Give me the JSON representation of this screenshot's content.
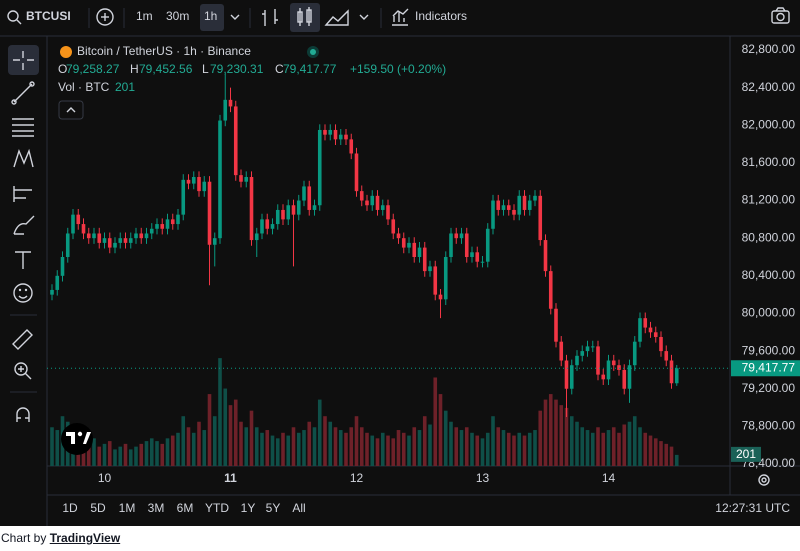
{
  "toolbar": {
    "symbol": "BTCUSI",
    "intervals": [
      "1m",
      "30m",
      "1h"
    ],
    "indicators": "Indicators"
  },
  "chart_data": {
    "type": "candlestick",
    "title": "Bitcoin / TetherUS · 1h · Binance",
    "ohlc_legend": {
      "o_label": "O",
      "o": "79,258.27",
      "h_label": "H",
      "h": "79,452.56",
      "l_label": "L",
      "l": "79,230.31",
      "c_label": "C",
      "c": "79,417.77",
      "change": "+159.50 (+0.20%)"
    },
    "volume_legend_label": "Vol · BTC",
    "categories": [
      null,
      null,
      null,
      null,
      null,
      null,
      null,
      null,
      null,
      null,
      "10",
      null,
      null,
      null,
      null,
      null,
      null,
      null,
      null,
      null,
      null,
      null,
      null,
      null,
      null,
      null,
      null,
      null,
      null,
      null,
      null,
      null,
      null,
      null,
      "11",
      null,
      null,
      null,
      null,
      null,
      null,
      null,
      null,
      null,
      null,
      null,
      null,
      null,
      null,
      null,
      null,
      null,
      null,
      null,
      null,
      null,
      null,
      null,
      "12",
      null,
      null,
      null,
      null,
      null,
      null,
      null,
      null,
      null,
      null,
      null,
      null,
      null,
      null,
      null,
      null,
      null,
      null,
      null,
      null,
      null,
      null,
      null,
      "13",
      null,
      null,
      null,
      null,
      null,
      null,
      null,
      null,
      null,
      null,
      null,
      null,
      null,
      null,
      null,
      null,
      null,
      null,
      null,
      null,
      null,
      null,
      null,
      "14",
      null,
      null,
      null,
      null,
      null,
      null,
      null,
      null,
      null,
      null,
      null,
      null,
      null
    ],
    "opens": [
      80200,
      80250,
      80400,
      80600,
      80850,
      81050,
      80950,
      80850,
      80800,
      80850,
      80750,
      80800,
      80700,
      80750,
      80800,
      80750,
      80800,
      80850,
      80800,
      80850,
      80900,
      80950,
      80900,
      81000,
      80950,
      81050,
      81420,
      81380,
      81450,
      81300,
      81400,
      80730,
      80800,
      82050,
      82270,
      82200,
      81470,
      81400,
      81450,
      80780,
      80850,
      81000,
      80900,
      80950,
      81100,
      81000,
      81150,
      81050,
      81200,
      81350,
      81100,
      81150,
      81950,
      81900,
      81950,
      81850,
      81900,
      81850,
      81700,
      81300,
      81200,
      81150,
      81250,
      81100,
      81150,
      81000,
      80850,
      80800,
      80700,
      80750,
      80600,
      80700,
      80450,
      80500,
      80200,
      80150,
      80600,
      80850,
      80800,
      80850,
      80600,
      80650,
      80550,
      80550,
      80900,
      81200,
      81100,
      81150,
      81100,
      81050,
      81250,
      81100,
      81200,
      81250,
      80780,
      80450,
      80050,
      79700,
      79500,
      79200,
      79450,
      79550,
      79600,
      79650,
      79650,
      79350,
      79300,
      79500,
      79450,
      79400,
      79200,
      79450,
      79700,
      79950,
      79850,
      79800,
      79750,
      79600,
      79500,
      79258.27
    ],
    "highs": [
      80310,
      80460,
      80660,
      80910,
      81110,
      81110,
      81010,
      80910,
      80910,
      80910,
      80860,
      80860,
      80810,
      80860,
      80860,
      80860,
      80910,
      80910,
      80910,
      80960,
      81010,
      81010,
      81060,
      81060,
      81110,
      81480,
      81480,
      81510,
      81510,
      81460,
      81460,
      80860,
      82110,
      82550,
      82400,
      82260,
      81530,
      81510,
      81510,
      80910,
      81060,
      81060,
      81010,
      81160,
      81160,
      81210,
      81210,
      81260,
      81410,
      81410,
      81210,
      82010,
      82010,
      82010,
      82010,
      81960,
      81960,
      81910,
      81760,
      81360,
      81260,
      81310,
      81310,
      81210,
      81210,
      81060,
      80910,
      80860,
      80810,
      80810,
      80760,
      80760,
      80560,
      80560,
      80260,
      80660,
      80910,
      80910,
      80910,
      80910,
      80710,
      80710,
      80610,
      80960,
      81260,
      81260,
      81210,
      81210,
      81160,
      81310,
      81310,
      81260,
      81310,
      81310,
      80840,
      80510,
      80110,
      79760,
      79560,
      79510,
      79610,
      79660,
      79710,
      79710,
      79710,
      79410,
      79560,
      79560,
      79510,
      79460,
      79510,
      79760,
      80010,
      80010,
      79910,
      79860,
      79810,
      79660,
      79560,
      79452.56
    ],
    "lows": [
      80140,
      80190,
      80340,
      80540,
      80790,
      80890,
      80790,
      80740,
      80740,
      80690,
      80690,
      80640,
      80640,
      80690,
      80690,
      80690,
      80740,
      80740,
      80740,
      80790,
      80840,
      80840,
      80840,
      80890,
      80890,
      80990,
      81320,
      81320,
      81240,
      81240,
      80300,
      80500,
      80740,
      81990,
      82140,
      81410,
      81340,
      81340,
      80720,
      80600,
      80790,
      80840,
      80840,
      80890,
      80940,
      80940,
      80500,
      80990,
      81140,
      81040,
      81040,
      81090,
      81840,
      81840,
      81790,
      81790,
      81790,
      81640,
      81240,
      81140,
      81090,
      81090,
      81040,
      81040,
      80940,
      80790,
      80740,
      80640,
      80640,
      80540,
      80540,
      80390,
      80390,
      80140,
      79950,
      80090,
      80540,
      80740,
      80740,
      80540,
      80540,
      80490,
      80490,
      80490,
      80840,
      81040,
      81040,
      81040,
      80990,
      80990,
      81040,
      81040,
      81140,
      80720,
      80390,
      79990,
      79640,
      79440,
      78900,
      79140,
      79390,
      79490,
      79540,
      79590,
      79290,
      79240,
      79240,
      79390,
      79340,
      79140,
      79050,
      79390,
      79640,
      79790,
      79740,
      79690,
      79540,
      79440,
      79200,
      79230.31
    ],
    "closes": [
      80250,
      80400,
      80600,
      80850,
      81050,
      80950,
      80850,
      80800,
      80850,
      80750,
      80800,
      80700,
      80750,
      80800,
      80750,
      80800,
      80850,
      80800,
      80850,
      80900,
      80950,
      80900,
      81000,
      80950,
      81050,
      81420,
      81380,
      81450,
      81300,
      81400,
      80730,
      80800,
      82050,
      82270,
      82200,
      81470,
      81400,
      81450,
      80780,
      80850,
      81000,
      80900,
      80950,
      81100,
      81000,
      81150,
      81050,
      81200,
      81350,
      81100,
      81150,
      81950,
      81900,
      81950,
      81850,
      81900,
      81850,
      81700,
      81300,
      81200,
      81150,
      81250,
      81100,
      81150,
      81000,
      80850,
      80800,
      80700,
      80750,
      80600,
      80700,
      80450,
      80500,
      80200,
      80150,
      80600,
      80850,
      80800,
      80850,
      80600,
      80650,
      80550,
      80550,
      80900,
      81200,
      81100,
      81150,
      81100,
      81050,
      81250,
      81100,
      81200,
      81250,
      80780,
      80450,
      80050,
      79700,
      79500,
      79200,
      79450,
      79550,
      79600,
      79650,
      79650,
      79350,
      79300,
      79500,
      79450,
      79400,
      79200,
      79450,
      79700,
      79950,
      79850,
      79800,
      79750,
      79600,
      79500,
      79258.27,
      79417.77
    ],
    "volumes": [
      700,
      650,
      900,
      800,
      600,
      500,
      450,
      400,
      500,
      350,
      400,
      450,
      300,
      350,
      400,
      300,
      350,
      400,
      450,
      500,
      450,
      400,
      500,
      550,
      600,
      900,
      700,
      600,
      800,
      650,
      1300,
      900,
      1950,
      1400,
      1100,
      1200,
      800,
      700,
      1000,
      700,
      600,
      650,
      550,
      500,
      600,
      550,
      700,
      600,
      650,
      800,
      700,
      1200,
      900,
      800,
      700,
      650,
      600,
      700,
      900,
      700,
      600,
      550,
      500,
      600,
      550,
      500,
      650,
      600,
      550,
      700,
      650,
      900,
      750,
      1600,
      1300,
      1000,
      800,
      700,
      650,
      700,
      600,
      550,
      500,
      600,
      900,
      700,
      650,
      600,
      550,
      600,
      550,
      600,
      650,
      1000,
      1200,
      1300,
      1200,
      1100,
      1050,
      900,
      800,
      700,
      650,
      600,
      700,
      600,
      650,
      700,
      600,
      750,
      800,
      900,
      700,
      600,
      550,
      500,
      450,
      400,
      350,
      201
    ],
    "up_color": "#089981",
    "down_color": "#f23645",
    "volume_up_color": "#0f4f48",
    "volume_down_color": "#6e2129",
    "ylim": [
      78379,
      82906
    ],
    "yticks": [
      {
        "value": 78400,
        "label": "78,400.00"
      },
      {
        "value": 78800,
        "label": "78,800.00"
      },
      {
        "value": 79200,
        "label": "79,200.00"
      },
      {
        "value": 79600,
        "label": "79,600.00"
      },
      {
        "value": 80000,
        "label": "80,000.00"
      },
      {
        "value": 80400,
        "label": "80,400.00"
      },
      {
        "value": 80800,
        "label": "80,800.00"
      },
      {
        "value": 81200,
        "label": "81,200.00"
      },
      {
        "value": 81600,
        "label": "81,600.00"
      },
      {
        "value": 82000,
        "label": "82,000.00"
      },
      {
        "value": 82400,
        "label": "82,400.00"
      },
      {
        "value": 82800,
        "label": "82,800.00"
      }
    ],
    "volume_lim": [
      0,
      7700
    ],
    "last_price_label": "79,417.77",
    "grid": false
  },
  "range_buttons": [
    "1D",
    "5D",
    "1M",
    "3M",
    "6M",
    "YTD",
    "1Y",
    "5Y",
    "All"
  ],
  "clock": "12:27:31 UTC",
  "footer": {
    "prefix": "Chart by",
    "link": "TradingView"
  }
}
